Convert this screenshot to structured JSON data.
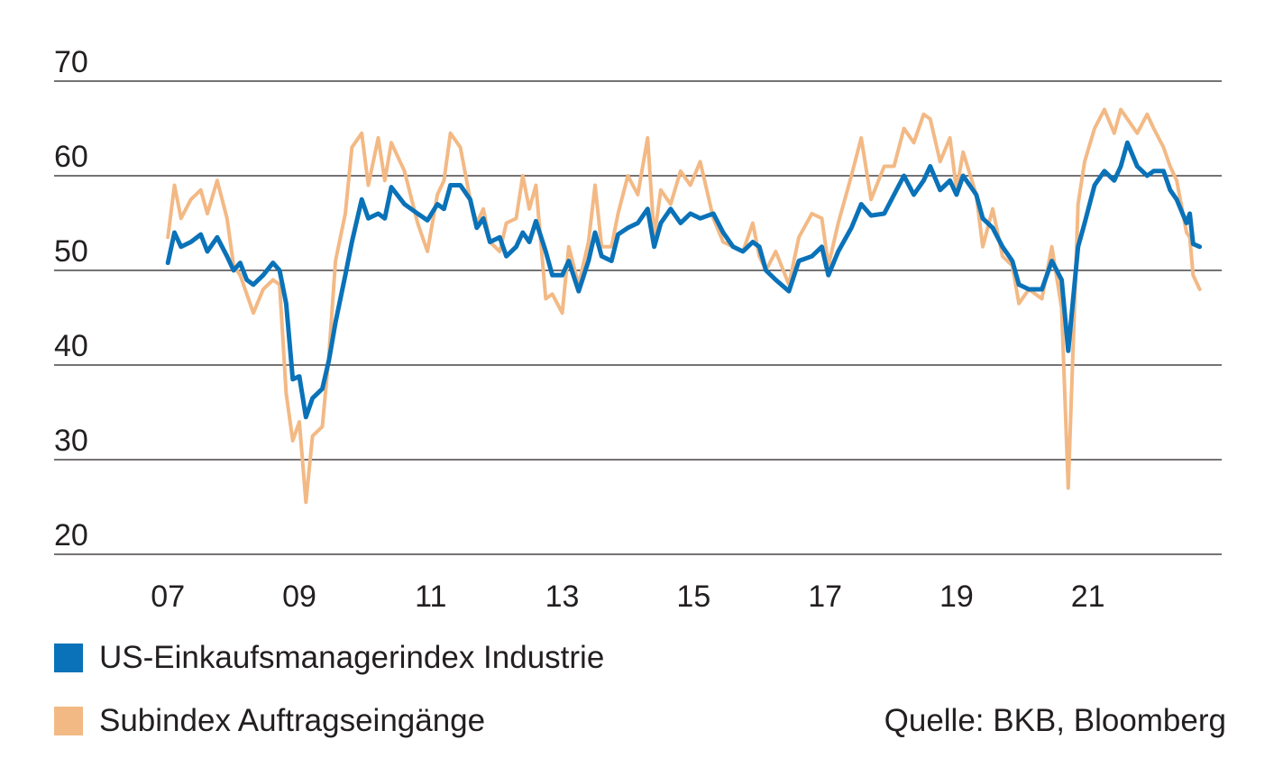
{
  "chart_data": {
    "type": "line",
    "title": "",
    "xlabel": "",
    "ylabel": "",
    "ylim": [
      20,
      70
    ],
    "y_ticks": [
      "70",
      "60",
      "50",
      "40",
      "30",
      "20"
    ],
    "x_ticks": [
      "07",
      "09",
      "11",
      "13",
      "15",
      "17",
      "19",
      "21"
    ],
    "x_tick_years": [
      2007,
      2009,
      2011,
      2013,
      2015,
      2017,
      2019,
      2021
    ],
    "x_range": [
      2006.75,
      2022.5
    ],
    "grid": "horizontal",
    "legend_position": "bottom-left",
    "series": [
      {
        "name": "US-Einkaufsmanagerindex Industrie",
        "color": "#0a72b8",
        "points": [
          [
            2007.0,
            50.8
          ],
          [
            2007.1,
            54.0
          ],
          [
            2007.2,
            52.5
          ],
          [
            2007.35,
            53.0
          ],
          [
            2007.5,
            53.8
          ],
          [
            2007.6,
            52.0
          ],
          [
            2007.75,
            53.5
          ],
          [
            2007.9,
            51.5
          ],
          [
            2008.0,
            50.0
          ],
          [
            2008.1,
            50.8
          ],
          [
            2008.2,
            49.0
          ],
          [
            2008.3,
            48.5
          ],
          [
            2008.45,
            49.5
          ],
          [
            2008.6,
            50.8
          ],
          [
            2008.7,
            50.0
          ],
          [
            2008.8,
            46.5
          ],
          [
            2008.9,
            38.5
          ],
          [
            2009.0,
            38.8
          ],
          [
            2009.1,
            34.5
          ],
          [
            2009.2,
            36.5
          ],
          [
            2009.35,
            37.5
          ],
          [
            2009.45,
            40.5
          ],
          [
            2009.55,
            44.5
          ],
          [
            2009.7,
            49.5
          ],
          [
            2009.8,
            53.0
          ],
          [
            2009.95,
            57.5
          ],
          [
            2010.05,
            55.5
          ],
          [
            2010.2,
            56.0
          ],
          [
            2010.3,
            55.5
          ],
          [
            2010.4,
            58.8
          ],
          [
            2010.6,
            57.0
          ],
          [
            2010.8,
            56.0
          ],
          [
            2010.95,
            55.3
          ],
          [
            2011.1,
            57.0
          ],
          [
            2011.2,
            56.5
          ],
          [
            2011.3,
            59.0
          ],
          [
            2011.45,
            59.0
          ],
          [
            2011.6,
            57.5
          ],
          [
            2011.7,
            54.5
          ],
          [
            2011.8,
            55.5
          ],
          [
            2011.9,
            53.0
          ],
          [
            2012.05,
            53.5
          ],
          [
            2012.15,
            51.5
          ],
          [
            2012.3,
            52.5
          ],
          [
            2012.4,
            54.0
          ],
          [
            2012.5,
            53.0
          ],
          [
            2012.6,
            55.2
          ],
          [
            2012.75,
            52.0
          ],
          [
            2012.85,
            49.5
          ],
          [
            2013.0,
            49.5
          ],
          [
            2013.1,
            51.0
          ],
          [
            2013.25,
            47.8
          ],
          [
            2013.4,
            51.0
          ],
          [
            2013.5,
            54.0
          ],
          [
            2013.6,
            51.5
          ],
          [
            2013.75,
            51.0
          ],
          [
            2013.85,
            53.8
          ],
          [
            2014.0,
            54.5
          ],
          [
            2014.15,
            55.0
          ],
          [
            2014.3,
            56.5
          ],
          [
            2014.4,
            52.5
          ],
          [
            2014.5,
            55.0
          ],
          [
            2014.65,
            56.5
          ],
          [
            2014.8,
            55.0
          ],
          [
            2014.95,
            56.0
          ],
          [
            2015.1,
            55.5
          ],
          [
            2015.3,
            56.0
          ],
          [
            2015.45,
            54.0
          ],
          [
            2015.6,
            52.5
          ],
          [
            2015.75,
            52.0
          ],
          [
            2015.9,
            53.0
          ],
          [
            2016.0,
            52.5
          ],
          [
            2016.1,
            50.0
          ],
          [
            2016.25,
            49.0
          ],
          [
            2016.45,
            47.8
          ],
          [
            2016.6,
            51.0
          ],
          [
            2016.8,
            51.5
          ],
          [
            2016.95,
            52.5
          ],
          [
            2017.05,
            49.5
          ],
          [
            2017.2,
            52.0
          ],
          [
            2017.4,
            54.5
          ],
          [
            2017.55,
            57.0
          ],
          [
            2017.7,
            55.8
          ],
          [
            2017.9,
            56.0
          ],
          [
            2018.05,
            58.0
          ],
          [
            2018.2,
            60.0
          ],
          [
            2018.35,
            58.0
          ],
          [
            2018.5,
            59.5
          ],
          [
            2018.6,
            61.0
          ],
          [
            2018.75,
            58.5
          ],
          [
            2018.9,
            59.5
          ],
          [
            2019.0,
            58.0
          ],
          [
            2019.1,
            60.0
          ],
          [
            2019.3,
            58.0
          ],
          [
            2019.4,
            55.5
          ],
          [
            2019.55,
            54.5
          ],
          [
            2019.7,
            52.5
          ],
          [
            2019.85,
            51.0
          ],
          [
            2019.95,
            48.5
          ],
          [
            2020.1,
            48.0
          ],
          [
            2020.3,
            48.0
          ],
          [
            2020.45,
            51.0
          ],
          [
            2020.6,
            49.0
          ],
          [
            2020.7,
            41.5
          ],
          [
            2020.85,
            52.5
          ],
          [
            2020.95,
            55.0
          ],
          [
            2021.1,
            59.0
          ],
          [
            2021.25,
            60.5
          ],
          [
            2021.4,
            59.5
          ],
          [
            2021.5,
            61.0
          ],
          [
            2021.6,
            63.5
          ],
          [
            2021.75,
            61.0
          ],
          [
            2021.9,
            60.0
          ],
          [
            2022.0,
            60.5
          ],
          [
            2022.15,
            60.5
          ],
          [
            2022.25,
            58.5
          ],
          [
            2022.35,
            57.5
          ],
          [
            2022.5,
            55.0
          ],
          [
            2022.55,
            56.0
          ],
          [
            2022.6,
            52.8
          ],
          [
            2022.7,
            52.5
          ]
        ]
      },
      {
        "name": "Subindex Auftragseingänge",
        "color": "#f3b985",
        "points": [
          [
            2007.0,
            53.5
          ],
          [
            2007.1,
            59.0
          ],
          [
            2007.2,
            55.5
          ],
          [
            2007.35,
            57.5
          ],
          [
            2007.5,
            58.5
          ],
          [
            2007.6,
            56.0
          ],
          [
            2007.75,
            59.5
          ],
          [
            2007.9,
            55.5
          ],
          [
            2008.0,
            50.5
          ],
          [
            2008.1,
            49.5
          ],
          [
            2008.2,
            47.5
          ],
          [
            2008.3,
            45.5
          ],
          [
            2008.45,
            48.0
          ],
          [
            2008.6,
            49.0
          ],
          [
            2008.7,
            48.5
          ],
          [
            2008.8,
            37.0
          ],
          [
            2008.9,
            32.0
          ],
          [
            2009.0,
            34.0
          ],
          [
            2009.1,
            25.5
          ],
          [
            2009.2,
            32.5
          ],
          [
            2009.35,
            33.5
          ],
          [
            2009.45,
            41.0
          ],
          [
            2009.55,
            51.0
          ],
          [
            2009.7,
            56.0
          ],
          [
            2009.8,
            63.0
          ],
          [
            2009.95,
            64.5
          ],
          [
            2010.05,
            59.0
          ],
          [
            2010.2,
            64.0
          ],
          [
            2010.3,
            59.5
          ],
          [
            2010.4,
            63.5
          ],
          [
            2010.6,
            60.5
          ],
          [
            2010.8,
            55.0
          ],
          [
            2010.95,
            52.0
          ],
          [
            2011.1,
            58.0
          ],
          [
            2011.2,
            59.5
          ],
          [
            2011.3,
            64.5
          ],
          [
            2011.45,
            63.0
          ],
          [
            2011.6,
            57.5
          ],
          [
            2011.7,
            55.0
          ],
          [
            2011.8,
            56.5
          ],
          [
            2011.9,
            53.0
          ],
          [
            2012.05,
            52.0
          ],
          [
            2012.15,
            55.0
          ],
          [
            2012.3,
            55.5
          ],
          [
            2012.4,
            60.0
          ],
          [
            2012.5,
            56.5
          ],
          [
            2012.6,
            59.0
          ],
          [
            2012.75,
            47.0
          ],
          [
            2012.85,
            47.5
          ],
          [
            2013.0,
            45.5
          ],
          [
            2013.1,
            52.5
          ],
          [
            2013.25,
            48.5
          ],
          [
            2013.4,
            53.0
          ],
          [
            2013.5,
            59.0
          ],
          [
            2013.6,
            52.5
          ],
          [
            2013.75,
            52.5
          ],
          [
            2013.85,
            56.0
          ],
          [
            2014.0,
            60.0
          ],
          [
            2014.15,
            58.0
          ],
          [
            2014.3,
            64.0
          ],
          [
            2014.4,
            53.5
          ],
          [
            2014.5,
            58.5
          ],
          [
            2014.65,
            57.0
          ],
          [
            2014.8,
            60.5
          ],
          [
            2014.95,
            59.0
          ],
          [
            2015.1,
            61.5
          ],
          [
            2015.3,
            55.5
          ],
          [
            2015.45,
            53.0
          ],
          [
            2015.6,
            52.5
          ],
          [
            2015.75,
            52.0
          ],
          [
            2015.9,
            55.0
          ],
          [
            2016.0,
            51.5
          ],
          [
            2016.1,
            50.0
          ],
          [
            2016.25,
            52.0
          ],
          [
            2016.45,
            48.5
          ],
          [
            2016.6,
            53.5
          ],
          [
            2016.8,
            56.0
          ],
          [
            2016.95,
            55.5
          ],
          [
            2017.05,
            50.5
          ],
          [
            2017.2,
            55.0
          ],
          [
            2017.4,
            60.0
          ],
          [
            2017.55,
            64.0
          ],
          [
            2017.7,
            57.5
          ],
          [
            2017.9,
            61.0
          ],
          [
            2018.05,
            61.0
          ],
          [
            2018.2,
            65.0
          ],
          [
            2018.35,
            63.5
          ],
          [
            2018.5,
            66.5
          ],
          [
            2018.6,
            66.0
          ],
          [
            2018.75,
            61.5
          ],
          [
            2018.9,
            64.0
          ],
          [
            2019.0,
            58.5
          ],
          [
            2019.1,
            62.5
          ],
          [
            2019.3,
            58.0
          ],
          [
            2019.4,
            52.5
          ],
          [
            2019.55,
            56.5
          ],
          [
            2019.7,
            51.5
          ],
          [
            2019.85,
            50.5
          ],
          [
            2019.95,
            46.5
          ],
          [
            2020.1,
            48.0
          ],
          [
            2020.3,
            47.0
          ],
          [
            2020.45,
            52.5
          ],
          [
            2020.6,
            46.0
          ],
          [
            2020.7,
            27.0
          ],
          [
            2020.85,
            57.0
          ],
          [
            2020.95,
            61.5
          ],
          [
            2021.1,
            65.0
          ],
          [
            2021.25,
            67.0
          ],
          [
            2021.4,
            64.5
          ],
          [
            2021.5,
            67.0
          ],
          [
            2021.6,
            66.0
          ],
          [
            2021.75,
            64.5
          ],
          [
            2021.9,
            66.5
          ],
          [
            2022.0,
            65.0
          ],
          [
            2022.15,
            63.0
          ],
          [
            2022.25,
            61.0
          ],
          [
            2022.35,
            59.5
          ],
          [
            2022.5,
            54.0
          ],
          [
            2022.55,
            53.5
          ],
          [
            2022.6,
            49.5
          ],
          [
            2022.7,
            48.0
          ]
        ]
      }
    ],
    "source": "Quelle: BKB, Bloomberg"
  }
}
